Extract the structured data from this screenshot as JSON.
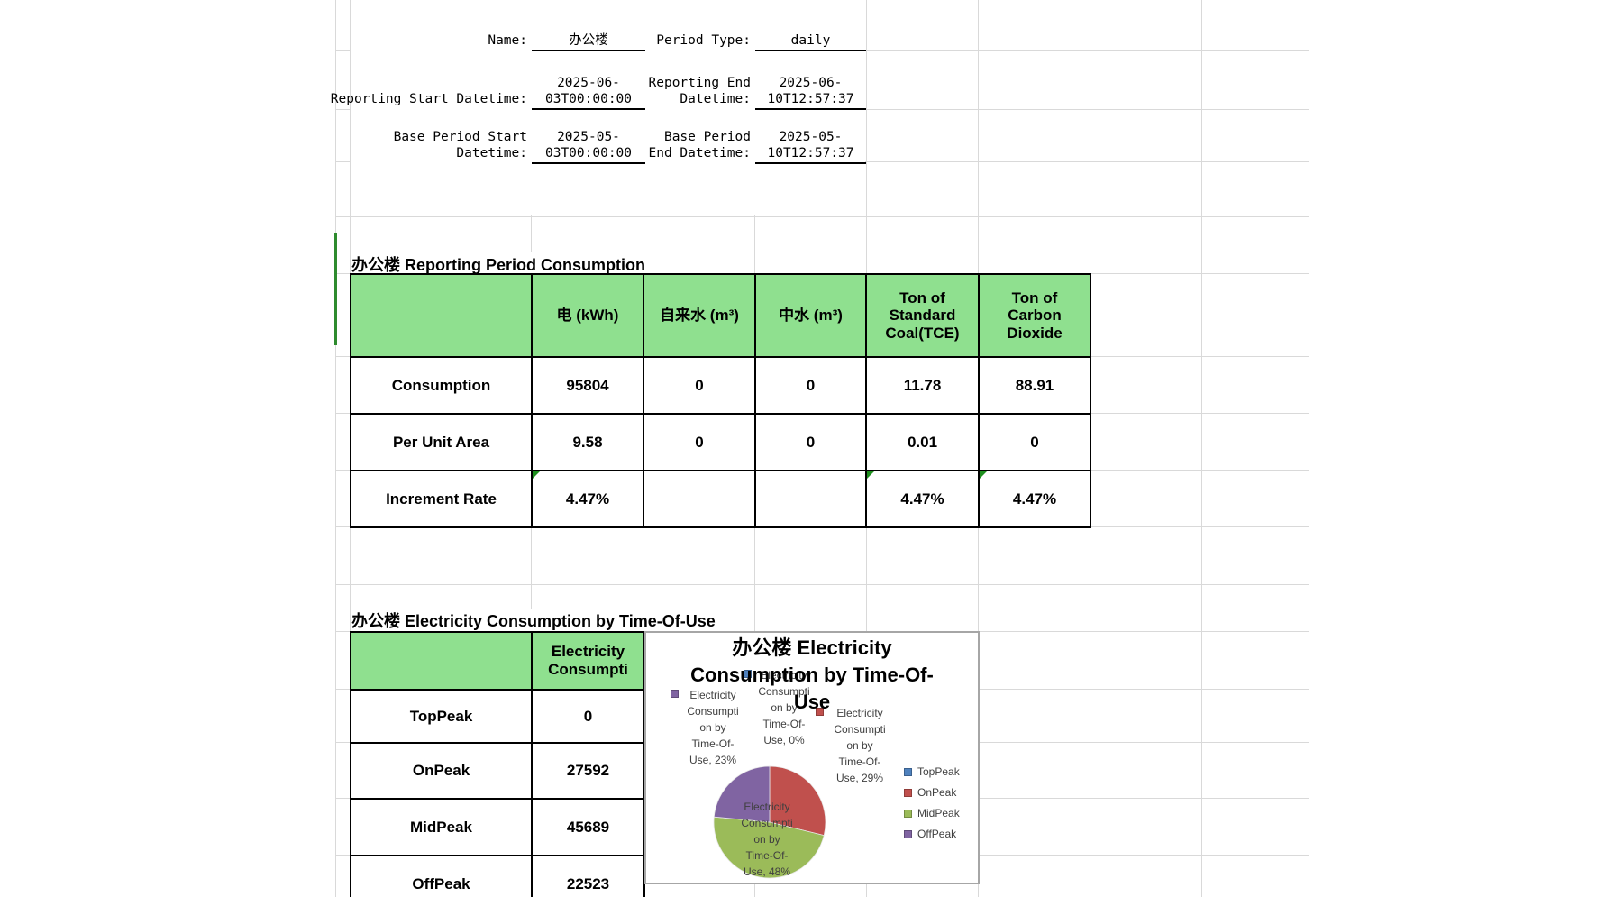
{
  "form": {
    "name": {
      "label": "Name:",
      "value": "办公楼"
    },
    "period_type": {
      "label": "Period Type:",
      "value": "daily"
    },
    "reporting_start": {
      "label": "Reporting Start Datetime:",
      "value_line1": "2025-06-",
      "value_line2": "03T00:00:00"
    },
    "reporting_end": {
      "label_line1": "Reporting End",
      "label_line2": "Datetime:",
      "value_line1": "2025-06-",
      "value_line2": "10T12:57:37"
    },
    "base_start": {
      "label_line1": "Base Period Start",
      "label_line2": "Datetime:",
      "value_line1": "2025-05-",
      "value_line2": "03T00:00:00"
    },
    "base_end": {
      "label_line1": "Base Period",
      "label_line2": "End Datetime:",
      "value_line1": "2025-05-",
      "value_line2": "10T12:57:37"
    }
  },
  "consumption_section": {
    "title": "办公楼 Reporting Period Consumption",
    "table": {
      "headers": [
        "电 (kWh)",
        "自来水 (m³)",
        "中水 (m³)",
        "Ton of Standard Coal(TCE)",
        "Ton of Carbon Dioxide"
      ],
      "rows": [
        {
          "label": "Consumption",
          "values": [
            "95804",
            "0",
            "0",
            "11.78",
            "88.91"
          ]
        },
        {
          "label": "Per Unit Area",
          "values": [
            "9.58",
            "0",
            "0",
            "0.01",
            "0"
          ]
        },
        {
          "label": "Increment Rate",
          "values": [
            "4.47%",
            "",
            "",
            "4.47%",
            "4.47%"
          ]
        }
      ]
    }
  },
  "tou_section": {
    "title": "办公楼 Electricity Consumption by Time-Of-Use",
    "table": {
      "header_line1": "Electricity",
      "header_line2": "Consumpti",
      "rows": [
        {
          "label": "TopPeak",
          "value": "0"
        },
        {
          "label": "OnPeak",
          "value": "27592"
        },
        {
          "label": "MidPeak",
          "value": "45689"
        },
        {
          "label": "OffPeak",
          "value": "22523"
        }
      ]
    }
  },
  "chart_data": {
    "type": "pie",
    "title": "办公楼 Electricity Consumption by Time-Of-Use",
    "title_lines": [
      "办公楼 Electricity",
      "Consumption by Time-Of-",
      "Use"
    ],
    "series_name": "Electricity Consumption by Time-Of-Use",
    "categories": [
      "TopPeak",
      "OnPeak",
      "MidPeak",
      "OffPeak"
    ],
    "values": [
      0,
      27592,
      45689,
      22523
    ],
    "percents": [
      0,
      29,
      48,
      23
    ],
    "colors": [
      "#4F81BD",
      "#C0504D",
      "#9BBB59",
      "#8064A2"
    ],
    "legend_position": "right",
    "legend_entries": [
      "TopPeak",
      "OnPeak",
      "MidPeak",
      "OffPeak"
    ],
    "data_labels": [
      {
        "position": "top",
        "marker_color": "#4F81BD",
        "lines": [
          "Electricity",
          "Consumpti",
          "on by",
          "Time-Of-",
          "Use, 0%"
        ]
      },
      {
        "position": "left",
        "marker_color": "#8064A2",
        "lines": [
          "Electricity",
          "Consumpti",
          "on by",
          "Time-Of-",
          "Use, 23%"
        ]
      },
      {
        "position": "right",
        "marker_color": "#C0504D",
        "lines": [
          "Electricity",
          "Consumpti",
          "on by",
          "Time-Of-",
          "Use, 29%"
        ]
      },
      {
        "position": "inside",
        "marker_color": null,
        "lines": [
          "Electricity",
          "Consumpti",
          "on by",
          "Time-Of-",
          "Use, 48%"
        ]
      }
    ]
  },
  "colors": {
    "header_fill": "#8FE08F",
    "grid_line": "#D9D9D9",
    "table_border": "#000000",
    "accent_green": "#2E8B2E",
    "comment_indicator": "#1E8F1E",
    "chart_border": "#A6A6A6",
    "label_text": "#404040"
  }
}
